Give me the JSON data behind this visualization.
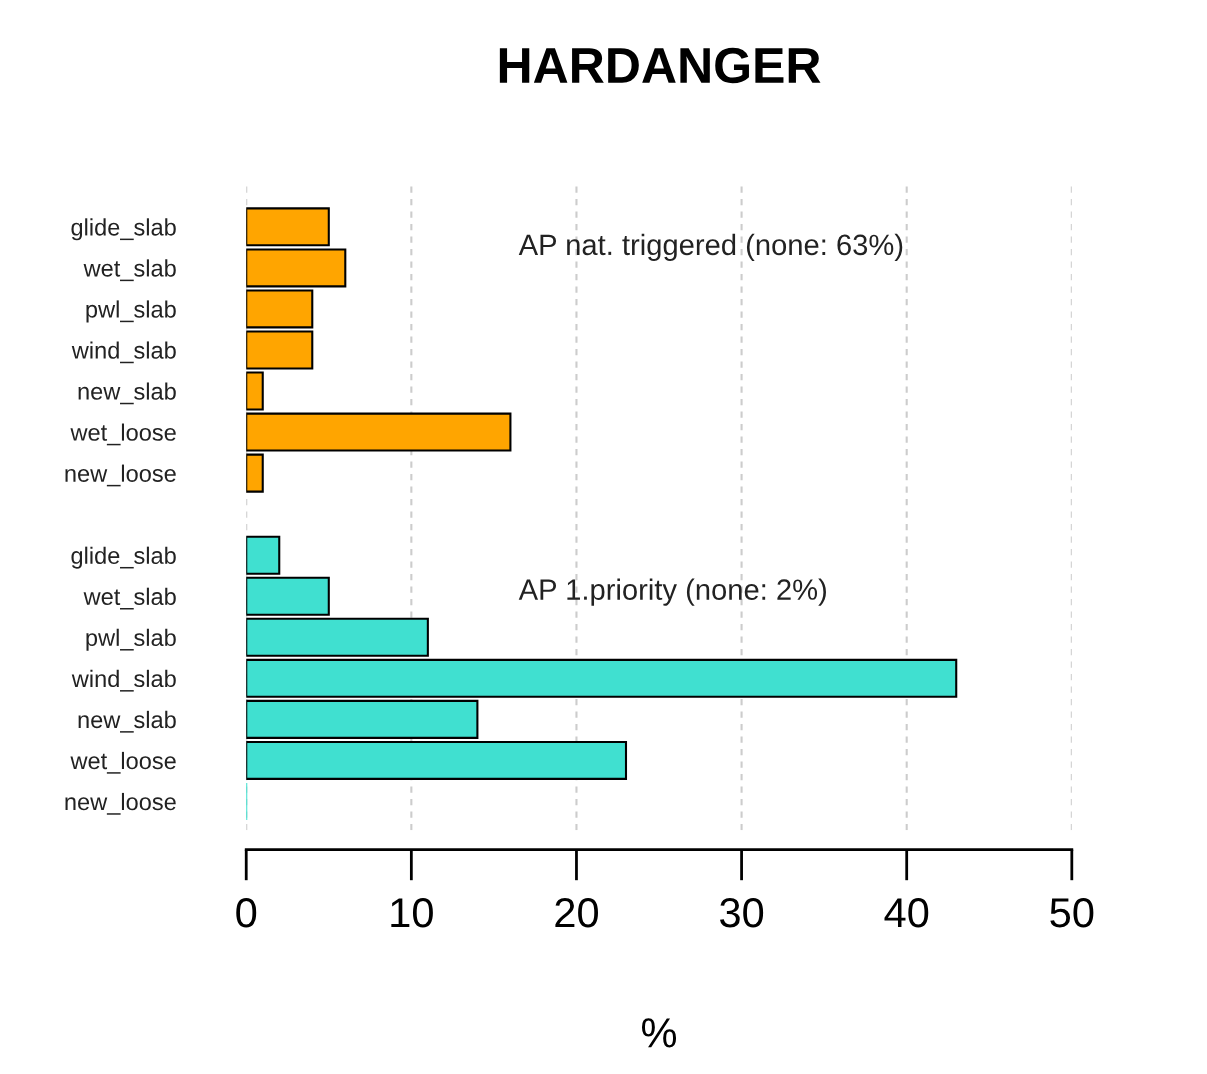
{
  "chart_data": {
    "type": "bar",
    "orientation": "horizontal",
    "stacked": true,
    "title": "HARDANGER",
    "xlabel": "%",
    "categories": [
      "glide_slab",
      "wet_slab",
      "pwl_slab",
      "wind_slab",
      "new_slab",
      "wet_loose",
      "new_loose",
      null,
      "glide_slab",
      "wet_slab",
      "pwl_slab",
      "wind_slab",
      "new_slab",
      "wet_loose",
      "new_loose"
    ],
    "series": [
      {
        "color": "#ffa500",
        "values": [
          5,
          6,
          4,
          4,
          1,
          16,
          1,
          null,
          null,
          null,
          null,
          null,
          null,
          null,
          null
        ]
      },
      {
        "color": "#40e0d0",
        "values": [
          null,
          null,
          null,
          null,
          null,
          null,
          null,
          null,
          2,
          5,
          11,
          43,
          14,
          23,
          0
        ]
      }
    ],
    "xlim": [
      0,
      50
    ],
    "xticks": [
      0,
      10,
      20,
      30,
      40,
      50
    ],
    "grid": "x",
    "annotations": [
      "AP nat. triggered (none: 63%)",
      "AP 1.priority (none: 2%)"
    ]
  }
}
